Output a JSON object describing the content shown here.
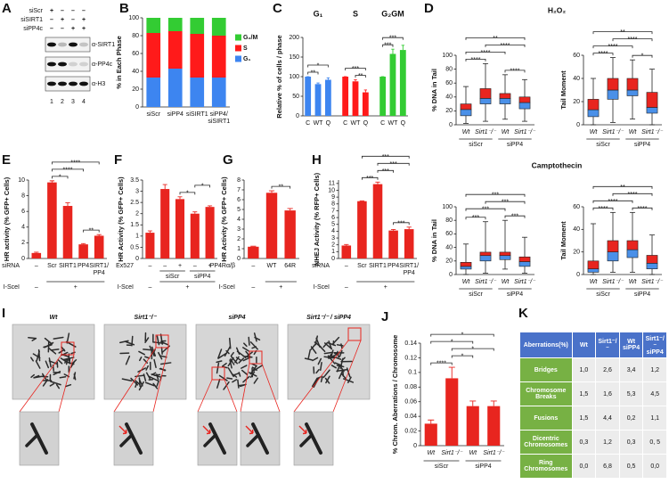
{
  "blot": {
    "panel": "A",
    "rows": [
      {
        "label": "siScr",
        "signs": [
          "+",
          "–",
          "–",
          "–"
        ]
      },
      {
        "label": "siSIRT1",
        "signs": [
          "–",
          "+",
          "–",
          "+"
        ]
      },
      {
        "label": "siPP4c",
        "signs": [
          "–",
          "–",
          "+",
          "+"
        ]
      }
    ],
    "bands": [
      "α-SIRT1",
      "α-PP4c",
      "α-H3"
    ],
    "lanes": [
      1,
      2,
      3,
      4
    ]
  },
  "chart_data": [
    {
      "panel": "B",
      "type": "stacked_bar",
      "ylabel": "% in Each Phase",
      "categories": [
        "siScr",
        "siPP4",
        "siSIRT1",
        "siPP4/siSIRT1"
      ],
      "series": [
        {
          "name": "G₁",
          "color": "#3d85f0",
          "values": [
            33,
            43,
            33,
            33
          ]
        },
        {
          "name": "S",
          "color": "#ff1a1a",
          "values": [
            50,
            42,
            49,
            47
          ]
        },
        {
          "name": "G₂/M",
          "color": "#33cc33",
          "values": [
            17,
            15,
            18,
            20
          ]
        }
      ],
      "ylim": [
        0,
        100
      ],
      "yticks": [
        0,
        20,
        40,
        60,
        80,
        100
      ],
      "legend": "right"
    },
    {
      "panel": "C",
      "type": "bar",
      "ylabel": "Relative % of cells / phase",
      "categories": [
        "C",
        "WT",
        "Q",
        "C",
        "WT",
        "Q",
        "C",
        "WT",
        "Q"
      ],
      "values": [
        100,
        81,
        92,
        100,
        88,
        60,
        100,
        158,
        168
      ],
      "errors": [
        0,
        3,
        5,
        0,
        4,
        6,
        0,
        12,
        12
      ],
      "groups": [
        {
          "name": "G₁",
          "color": "#3d85f0",
          "from": 0,
          "to": 2
        },
        {
          "name": "S",
          "color": "#ff1a1a",
          "from": 3,
          "to": 5
        },
        {
          "name": "G₂GM",
          "color": "#33cc33",
          "from": 6,
          "to": 8
        }
      ],
      "sig": [
        {
          "from": 0,
          "to": 1,
          "label": "**"
        },
        {
          "from": 0,
          "to": 2,
          "label": "*"
        },
        {
          "from": 4,
          "to": 5,
          "label": "**"
        },
        {
          "from": 3,
          "to": 5,
          "label": "***"
        },
        {
          "from": 6,
          "to": 7,
          "label": "***"
        },
        {
          "from": 6,
          "to": 8,
          "label": "***"
        }
      ],
      "ylim": [
        0,
        200
      ],
      "yticks": [
        0,
        50,
        100,
        150,
        200
      ]
    },
    {
      "panel": "D",
      "type": "box",
      "title": "H₂O₂",
      "ylabel": "% DNA in Tail",
      "categories": [
        "Wt",
        "Sirt1⁻/⁻",
        "Wt",
        "Sirt1⁻/⁻"
      ],
      "whislo": [
        2,
        5,
        8,
        5
      ],
      "q1": [
        13,
        30,
        30,
        23
      ],
      "med": [
        22,
        38,
        38,
        32
      ],
      "q3": [
        30,
        52,
        45,
        40
      ],
      "whishi": [
        55,
        88,
        72,
        65
      ],
      "lower_color": "#4a90e8",
      "upper_color": "#e8251f",
      "conditions": [
        {
          "items": [
            {
              "text": "siScr",
              "from": 0,
              "to": 1
            },
            {
              "text": "siPP4",
              "from": 2,
              "to": 3
            }
          ]
        }
      ],
      "sig": [
        {
          "from": 0,
          "to": 1,
          "label": "****"
        },
        {
          "from": 2,
          "to": 3,
          "label": "****"
        },
        {
          "from": 0,
          "to": 2,
          "label": "****"
        },
        {
          "from": 1,
          "to": 3,
          "label": "****"
        },
        {
          "from": 0,
          "to": 3,
          "label": "**"
        }
      ],
      "ylim": [
        0,
        100
      ],
      "yticks": [
        0,
        20,
        40,
        60,
        80,
        100
      ]
    },
    {
      "type": "box",
      "ylabel": "Tail Moment",
      "categories": [
        "Wt",
        "Sirt1⁻/⁻",
        "Wt",
        "Sirt1⁻/⁻"
      ],
      "whislo": [
        0,
        2,
        5,
        0
      ],
      "q1": [
        7,
        22,
        25,
        10
      ],
      "med": [
        13,
        30,
        30,
        15
      ],
      "q3": [
        22,
        40,
        40,
        28
      ],
      "whishi": [
        40,
        58,
        56,
        48
      ],
      "lower_color": "#4a90e8",
      "upper_color": "#e8251f",
      "conditions": [
        {
          "items": [
            {
              "text": "siScr",
              "from": 0,
              "to": 1
            },
            {
              "text": "siPP4",
              "from": 2,
              "to": 3
            }
          ]
        }
      ],
      "sig": [
        {
          "from": 2,
          "to": 3,
          "label": "*"
        },
        {
          "from": 0,
          "to": 1,
          "label": "****"
        },
        {
          "from": 0,
          "to": 2,
          "label": "****"
        },
        {
          "from": 1,
          "to": 3,
          "label": "****"
        },
        {
          "from": 0,
          "to": 3,
          "label": "**"
        }
      ],
      "ylim": [
        0,
        60
      ],
      "yticks": [
        0,
        20,
        40,
        60
      ]
    },
    {
      "type": "box",
      "title": "Camptothecin",
      "ylabel": "% DNA in Tail",
      "categories": [
        "Wt",
        "Sirt1⁻/⁻",
        "Wt",
        "Sirt1⁻/⁻"
      ],
      "whislo": [
        0,
        2,
        8,
        2
      ],
      "q1": [
        8,
        20,
        22,
        12
      ],
      "med": [
        12,
        28,
        28,
        19
      ],
      "q3": [
        18,
        33,
        33,
        26
      ],
      "whishi": [
        45,
        78,
        80,
        55
      ],
      "lower_color": "#4a90e8",
      "upper_color": "#e8251f",
      "conditions": [
        {
          "items": [
            {
              "text": "siScr",
              "from": 0,
              "to": 1
            },
            {
              "text": "siPP4",
              "from": 2,
              "to": 3
            }
          ]
        }
      ],
      "sig": [
        {
          "from": 0,
          "to": 1,
          "label": "***"
        },
        {
          "from": 2,
          "to": 3,
          "label": "***"
        },
        {
          "from": 0,
          "to": 2,
          "label": "***"
        },
        {
          "from": 1,
          "to": 3,
          "label": "***"
        },
        {
          "from": 0,
          "to": 3,
          "label": "***"
        }
      ],
      "ylim": [
        0,
        100
      ],
      "yticks": [
        0,
        20,
        40,
        60,
        80,
        100
      ]
    },
    {
      "type": "box",
      "ylabel": "Tail Moment",
      "categories": [
        "Wt",
        "Sirt1⁻/⁻",
        "Wt",
        "Sirt1⁻/⁻"
      ],
      "whislo": [
        0,
        2,
        2,
        0
      ],
      "q1": [
        2,
        12,
        15,
        5
      ],
      "med": [
        5,
        20,
        22,
        10
      ],
      "q3": [
        12,
        30,
        30,
        17
      ],
      "whishi": [
        45,
        55,
        55,
        35
      ],
      "lower_color": "#4a90e8",
      "upper_color": "#e8251f",
      "conditions": [
        {
          "items": [
            {
              "text": "siScr",
              "from": 0,
              "to": 1
            },
            {
              "text": "siPP4",
              "from": 2,
              "to": 3
            }
          ]
        }
      ],
      "sig": [
        {
          "from": 0,
          "to": 1,
          "label": "****"
        },
        {
          "from": 2,
          "to": 3,
          "label": "****"
        },
        {
          "from": 0,
          "to": 2,
          "label": "****"
        },
        {
          "from": 1,
          "to": 3,
          "label": "****"
        },
        {
          "from": 0,
          "to": 3,
          "label": "**"
        }
      ],
      "ylim": [
        0,
        60
      ],
      "yticks": [
        0,
        20,
        40,
        60
      ]
    },
    {
      "panel": "E",
      "type": "bar",
      "ylabel": "HR activity (% GFP+ Cells)",
      "color": "#e8251f",
      "category_label": "siRNA",
      "categories": [
        "–",
        "Scr",
        "SIRT1",
        "PP4",
        "SIRT1/PP4"
      ],
      "values": [
        0.7,
        9.7,
        6.7,
        1.8,
        2.9
      ],
      "errors": [
        0.1,
        0.2,
        0.4,
        0.1,
        0.15
      ],
      "conditions": [
        {
          "label": "I-SceI",
          "items": [
            {
              "text": "–",
              "from": 0,
              "to": 0
            },
            {
              "text": "+",
              "from": 1,
              "to": 4
            }
          ]
        }
      ],
      "sig": [
        {
          "from": 3,
          "to": 4,
          "label": "**"
        },
        {
          "from": 1,
          "to": 2,
          "label": "*"
        },
        {
          "from": 1,
          "to": 3,
          "label": "****"
        },
        {
          "from": 1,
          "to": 4,
          "label": "****"
        }
      ],
      "ylim": [
        0,
        10
      ],
      "yticks": [
        0,
        2,
        4,
        6,
        8,
        10
      ]
    },
    {
      "panel": "F",
      "type": "bar",
      "ylabel": "HR Activity (% GFP+ Cells)",
      "color": "#e8251f",
      "category_label": "Ex527",
      "categories": [
        "–",
        "–",
        "+",
        "–",
        "+"
      ],
      "values": [
        1.15,
        3.1,
        2.65,
        2.0,
        2.3
      ],
      "errors": [
        0.08,
        0.2,
        0.1,
        0.08,
        0.05
      ],
      "conditions": [
        {
          "items": [
            {
              "text": "siScr",
              "from": 1,
              "to": 2
            },
            {
              "text": "siPP4",
              "from": 3,
              "to": 4
            }
          ]
        },
        {
          "label": "I-SceI",
          "items": [
            {
              "text": "–",
              "from": 0,
              "to": 0
            },
            {
              "text": "+",
              "from": 1,
              "to": 4
            }
          ]
        }
      ],
      "sig": [
        {
          "from": 2,
          "to": 3,
          "label": "*"
        },
        {
          "from": 3,
          "to": 4,
          "label": "*"
        }
      ],
      "ylim": [
        0,
        3.5
      ],
      "yticks": [
        0,
        0.5,
        1,
        1.5,
        2,
        2.5,
        3,
        3.5
      ]
    },
    {
      "panel": "G",
      "type": "bar",
      "ylabel": "HR Activity (% GFP+ Cells)",
      "color": "#e8251f",
      "category_label": "PP4Rα/β",
      "categories": [
        "–",
        "WT",
        "64R"
      ],
      "values": [
        1.2,
        6.7,
        4.9
      ],
      "errors": [
        0.05,
        0.2,
        0.2
      ],
      "conditions": [
        {
          "label": "I-SceI",
          "items": [
            {
              "text": "–",
              "from": 0,
              "to": 0
            },
            {
              "text": "+",
              "from": 1,
              "to": 2
            }
          ]
        }
      ],
      "sig": [
        {
          "from": 1,
          "to": 2,
          "label": "**"
        }
      ],
      "ylim": [
        0,
        8
      ],
      "yticks": [
        0,
        1,
        2,
        3,
        4,
        5,
        6,
        7,
        8
      ]
    },
    {
      "panel": "H",
      "type": "bar",
      "ylabel": "NHEJ Activity (% RFP+ Cells)",
      "color": "#e8251f",
      "category_label": "siRNA",
      "categories": [
        "–",
        "Scr",
        "SIRT1",
        "PP4",
        "SIRT1/PP4"
      ],
      "values": [
        1.9,
        8.4,
        10.9,
        4.1,
        4.3
      ],
      "errors": [
        0.15,
        0.05,
        0.3,
        0.15,
        0.3
      ],
      "conditions": [
        {
          "label": "I-SceI",
          "items": [
            {
              "text": "–",
              "from": 0,
              "to": 0
            },
            {
              "text": "+",
              "from": 1,
              "to": 4
            }
          ]
        }
      ],
      "sig": [
        {
          "from": 1,
          "to": 2,
          "label": "***"
        },
        {
          "from": 3,
          "to": 4,
          "label": "***"
        },
        {
          "from": 2,
          "to": 3,
          "label": "***"
        },
        {
          "from": 2,
          "to": 4,
          "label": "***"
        },
        {
          "from": 1,
          "to": 4,
          "label": "***"
        }
      ],
      "ylim": [
        0,
        11.5
      ],
      "yticks": [
        0,
        1,
        2,
        3,
        4,
        5,
        6,
        7,
        8,
        9,
        10,
        11
      ]
    },
    {
      "panel": "J",
      "type": "bar",
      "ylabel": "% Chrom. Aberrations / Chromosome",
      "color": "#e8251f",
      "categories": [
        "Wt",
        "Sirt1⁻/⁻",
        "Wt",
        "Sirt1⁻/⁻"
      ],
      "values": [
        0.03,
        0.092,
        0.054,
        0.054
      ],
      "errors": [
        0.005,
        0.015,
        0.007,
        0.007
      ],
      "conditions": [
        {
          "items": [
            {
              "text": "siScr",
              "from": 0,
              "to": 1
            },
            {
              "text": "siPP4",
              "from": 2,
              "to": 3
            }
          ]
        }
      ],
      "sig": [
        {
          "from": 0,
          "to": 1,
          "label": "****"
        },
        {
          "from": 1,
          "to": 2,
          "label": "*"
        },
        {
          "from": 1,
          "to": 3,
          "label": "*"
        },
        {
          "from": 0,
          "to": 2,
          "label": "*"
        },
        {
          "from": 0,
          "to": 3,
          "label": "*"
        }
      ],
      "ylim": [
        0,
        0.14
      ],
      "yticks": [
        0,
        0.02,
        0.04,
        0.06,
        0.08,
        0.1,
        0.12,
        0.14
      ]
    }
  ],
  "images": {
    "panel": "I",
    "labels": [
      "Wt",
      "Sirt1⁻/⁻",
      "siPP4",
      "Sirt1⁻/⁻ / siPP4"
    ]
  },
  "table": {
    "panel": "K",
    "header": [
      "Aberrations(%)",
      "Wt",
      "Sirt1⁻/⁻",
      "Wt siPP4",
      "Sirt1⁻/⁻ siPP4"
    ],
    "rows": [
      [
        "Bridges",
        "1,0",
        "2,6",
        "3,4",
        "1,2"
      ],
      [
        "Chromosome Breaks",
        "1,5",
        "1,6",
        "5,3",
        "4,5"
      ],
      [
        "Fusions",
        "1,5",
        "4,4",
        "0,2",
        "1,1"
      ],
      [
        "Dicentric Chromosomes",
        "0,3",
        "1,2",
        "0,3",
        "0, 5"
      ],
      [
        "Ring Chromosomes",
        "0,0",
        "6,8",
        "0,5",
        "0,0"
      ]
    ]
  }
}
